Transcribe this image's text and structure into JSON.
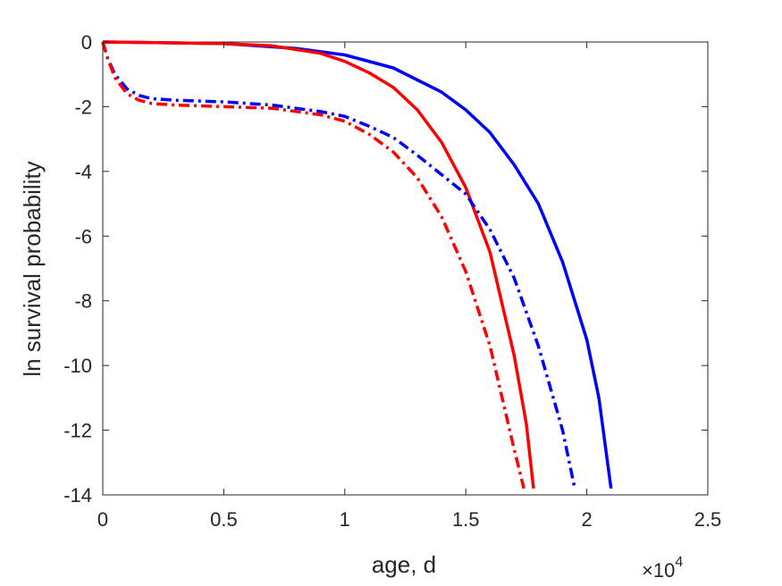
{
  "chart_data": {
    "type": "line",
    "title": "",
    "xlabel": "age, d",
    "ylabel": "ln survival probability",
    "x_multiplier": {
      "base": "10",
      "exponent": "4"
    },
    "xlim": [
      0,
      2.5
    ],
    "ylim": [
      -14,
      0
    ],
    "x_ticks": [
      0,
      0.5,
      1,
      1.5,
      2,
      2.5
    ],
    "x_tick_labels": [
      "0",
      "0.5",
      "1",
      "1.5",
      "2",
      "2.5"
    ],
    "y_ticks": [
      0,
      -2,
      -4,
      -6,
      -8,
      -10,
      -12,
      -14
    ],
    "y_tick_labels": [
      "0",
      "-2",
      "-4",
      "-6",
      "-8",
      "-10",
      "-12",
      "-14"
    ],
    "grid": false,
    "legend": "none",
    "series": [
      {
        "color": "#0000ff",
        "style": "solid",
        "points": [
          [
            0.0,
            0.0
          ],
          [
            0.5,
            -0.05
          ],
          [
            0.8,
            -0.2
          ],
          [
            1.0,
            -0.4
          ],
          [
            1.2,
            -0.8
          ],
          [
            1.4,
            -1.55
          ],
          [
            1.5,
            -2.1
          ],
          [
            1.6,
            -2.8
          ],
          [
            1.7,
            -3.8
          ],
          [
            1.8,
            -5.0
          ],
          [
            1.9,
            -6.8
          ],
          [
            2.0,
            -9.2
          ],
          [
            2.05,
            -11.0
          ],
          [
            2.1,
            -13.8
          ]
        ]
      },
      {
        "color": "#ff0000",
        "style": "solid",
        "points": [
          [
            0.0,
            0.0
          ],
          [
            0.5,
            -0.05
          ],
          [
            0.7,
            -0.12
          ],
          [
            0.9,
            -0.35
          ],
          [
            1.0,
            -0.6
          ],
          [
            1.1,
            -0.95
          ],
          [
            1.2,
            -1.4
          ],
          [
            1.3,
            -2.1
          ],
          [
            1.4,
            -3.1
          ],
          [
            1.5,
            -4.5
          ],
          [
            1.6,
            -6.5
          ],
          [
            1.7,
            -9.7
          ],
          [
            1.75,
            -11.8
          ],
          [
            1.78,
            -13.8
          ]
        ]
      },
      {
        "color": "#0000ff",
        "style": "dashdot",
        "points": [
          [
            0.0,
            0.0
          ],
          [
            0.02,
            -0.5
          ],
          [
            0.05,
            -1.0
          ],
          [
            0.1,
            -1.45
          ],
          [
            0.15,
            -1.65
          ],
          [
            0.2,
            -1.75
          ],
          [
            0.3,
            -1.8
          ],
          [
            0.5,
            -1.85
          ],
          [
            0.7,
            -1.95
          ],
          [
            0.9,
            -2.15
          ],
          [
            1.0,
            -2.3
          ],
          [
            1.1,
            -2.6
          ],
          [
            1.2,
            -2.95
          ],
          [
            1.3,
            -3.5
          ],
          [
            1.4,
            -4.1
          ],
          [
            1.5,
            -4.7
          ],
          [
            1.6,
            -5.8
          ],
          [
            1.7,
            -7.3
          ],
          [
            1.8,
            -9.4
          ],
          [
            1.9,
            -12.0
          ],
          [
            1.95,
            -13.8
          ]
        ]
      },
      {
        "color": "#ff0000",
        "style": "dashdot",
        "points": [
          [
            0.0,
            0.0
          ],
          [
            0.02,
            -0.5
          ],
          [
            0.05,
            -1.1
          ],
          [
            0.1,
            -1.6
          ],
          [
            0.15,
            -1.8
          ],
          [
            0.2,
            -1.9
          ],
          [
            0.3,
            -1.95
          ],
          [
            0.5,
            -2.0
          ],
          [
            0.7,
            -2.05
          ],
          [
            0.9,
            -2.25
          ],
          [
            1.0,
            -2.45
          ],
          [
            1.1,
            -2.85
          ],
          [
            1.2,
            -3.4
          ],
          [
            1.3,
            -4.2
          ],
          [
            1.4,
            -5.4
          ],
          [
            1.5,
            -7.1
          ],
          [
            1.6,
            -9.4
          ],
          [
            1.7,
            -12.6
          ],
          [
            1.74,
            -13.8
          ]
        ]
      }
    ]
  }
}
